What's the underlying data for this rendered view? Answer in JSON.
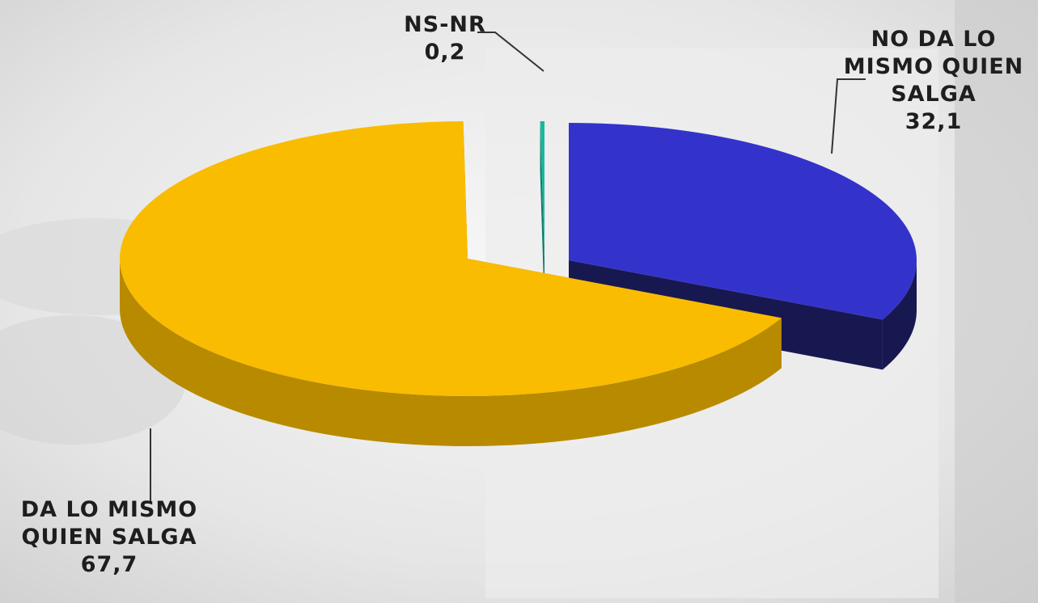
{
  "chart_data": {
    "type": "pie",
    "title": "",
    "slices": [
      {
        "label_lines": [
          "NO DA LO",
          "MISMO QUIEN",
          "SALGA"
        ],
        "value": 32.1,
        "value_text": "32,1",
        "color": "#3333cc",
        "side_color": "#181850"
      },
      {
        "label_lines": [
          "DA LO MISMO",
          "QUIEN SALGA"
        ],
        "value": 67.7,
        "value_text": "67,7",
        "color": "#f9bc00",
        "side_color": "#b88a00"
      },
      {
        "label_lines": [
          "NS-NR"
        ],
        "value": 0.2,
        "value_text": "0,2",
        "color": "#1ab89a",
        "side_color": "#0e7a66"
      }
    ],
    "legend": "none",
    "style": "3d-exploded-pie"
  }
}
